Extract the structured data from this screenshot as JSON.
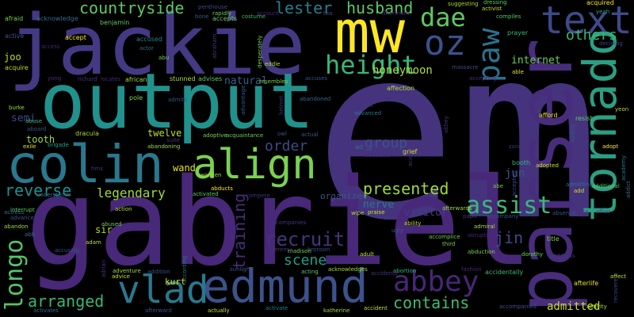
{
  "words": [
    {
      "text": "em",
      "color": "#46337e"
    },
    {
      "text": "gabriel",
      "color": "#482878"
    },
    {
      "text": "jackie",
      "color": "#443983"
    },
    {
      "text": "output",
      "color": "#21918c"
    },
    {
      "text": "parser",
      "color": "#472d7b"
    },
    {
      "text": "mw",
      "color": "#fde725"
    },
    {
      "text": "colin",
      "color": "#2a788e"
    },
    {
      "text": "edmund",
      "color": "#3b528b"
    },
    {
      "text": "tornado",
      "color": "#2c9f83"
    },
    {
      "text": "text",
      "color": "#3e4989"
    },
    {
      "text": "align",
      "color": "#7ad151"
    },
    {
      "text": "vlad",
      "color": "#2a788e"
    },
    {
      "text": "abbey",
      "color": "#482677"
    },
    {
      "text": "oz",
      "color": "#3b528b"
    },
    {
      "text": "paw",
      "color": "#2c728e"
    },
    {
      "text": "height",
      "color": "#35b779"
    },
    {
      "text": "dae",
      "color": "#5ec962"
    },
    {
      "text": "countryside",
      "color": "#5ec962"
    },
    {
      "text": "longo",
      "color": "#54c568"
    },
    {
      "text": "assist",
      "color": "#3aba76"
    },
    {
      "text": "recruit",
      "color": "#46337e"
    },
    {
      "text": "reverse",
      "color": "#218f8d"
    },
    {
      "text": "arranged",
      "color": "#35b779"
    },
    {
      "text": "contains",
      "color": "#3dbc74"
    },
    {
      "text": "presented",
      "color": "#a0da39"
    },
    {
      "text": "husband",
      "color": "#5ec962"
    },
    {
      "text": "lester",
      "color": "#277f8e"
    },
    {
      "text": "others",
      "color": "#37b878"
    },
    {
      "text": "training",
      "color": "#472d7b"
    },
    {
      "text": "order",
      "color": "#3e4989"
    },
    {
      "text": "group",
      "color": "#3b528b"
    },
    {
      "text": "jin",
      "color": "#3e4989"
    },
    {
      "text": "scene",
      "color": "#1f9e89"
    },
    {
      "text": "admitted",
      "color": "#c8e020"
    },
    {
      "text": "legendary",
      "color": "#a0da39"
    },
    {
      "text": "honeymoon",
      "color": "#addc30"
    },
    {
      "text": "jun",
      "color": "#38588c"
    },
    {
      "text": "internet",
      "color": "#6ece58"
    },
    {
      "text": "natural",
      "color": "#34618d"
    },
    {
      "text": "visitor",
      "color": "#433e85"
    },
    {
      "text": "nerve",
      "color": "#2a788e"
    },
    {
      "text": "twelve",
      "color": "#c2df23"
    },
    {
      "text": "tooth",
      "color": "#9fda3a"
    },
    {
      "text": "semi",
      "color": "#3e4989"
    },
    {
      "text": "joo",
      "color": "#b5de2b"
    },
    {
      "text": "wand",
      "color": "#e5e419"
    },
    {
      "text": "sir",
      "color": "#addc30"
    },
    {
      "text": "kurt",
      "color": "#d8e219"
    },
    {
      "text": "organizes",
      "color": "#38588c"
    },
    {
      "text": "willie",
      "color": "#46337e"
    },
    {
      "text": "afraid",
      "color": "#7ad151"
    },
    {
      "text": "acknowledge",
      "color": "#2c728e"
    },
    {
      "text": "benjamin",
      "color": "#5ec962"
    },
    {
      "text": "active",
      "color": "#3b528b"
    },
    {
      "text": "accept",
      "color": "#fde725"
    },
    {
      "text": "access",
      "color": "#482878"
    },
    {
      "text": "acquire",
      "color": "#c2df23"
    },
    {
      "text": "accused",
      "color": "#26828e"
    },
    {
      "text": "actor",
      "color": "#30697e"
    },
    {
      "text": "abu",
      "color": "#7ad151"
    },
    {
      "text": "penthouse",
      "color": "#3e4989"
    },
    {
      "text": "bone",
      "color": "#38588c"
    },
    {
      "text": "rapidly",
      "color": "#6ece58"
    },
    {
      "text": "accepts",
      "color": "#6ece58"
    },
    {
      "text": "costume",
      "color": "#35b779"
    },
    {
      "text": "account",
      "color": "#482878"
    },
    {
      "text": "tea",
      "color": "#3b528b"
    },
    {
      "text": "aftermath",
      "color": "#472d7b"
    },
    {
      "text": "suggesting",
      "color": "#a0da39"
    },
    {
      "text": "dressing",
      "color": "#5ec962"
    },
    {
      "text": "activist",
      "color": "#bddf26"
    },
    {
      "text": "compiles",
      "color": "#5ec962"
    },
    {
      "text": "acquired",
      "color": "#fde725"
    },
    {
      "text": "yeah",
      "color": "#22a884"
    },
    {
      "text": "deciding",
      "color": "#433e85"
    },
    {
      "text": "prayer",
      "color": "#35b779"
    },
    {
      "text": "abraham",
      "color": "#46337e"
    },
    {
      "text": "desperately",
      "color": "#7ad151"
    },
    {
      "text": "eddie",
      "color": "#addc30"
    },
    {
      "text": "able",
      "color": "#e5e419"
    },
    {
      "text": "massacre",
      "color": "#3e4989"
    },
    {
      "text": "accepting",
      "color": "#472d7b"
    },
    {
      "text": "affection",
      "color": "#addc30"
    },
    {
      "text": "accuses",
      "color": "#3b528b"
    },
    {
      "text": "abandoned",
      "color": "#31688e"
    },
    {
      "text": "resembles",
      "color": "#7ad151"
    },
    {
      "text": "stunned",
      "color": "#addc30"
    },
    {
      "text": "advises",
      "color": "#5ec962"
    },
    {
      "text": "locates",
      "color": "#482878"
    },
    {
      "text": "african",
      "color": "#a0da39"
    },
    {
      "text": "richard",
      "color": "#46337e"
    },
    {
      "text": "pole",
      "color": "#7ad151"
    },
    {
      "text": "admits",
      "color": "#3b528b"
    },
    {
      "text": "advantage",
      "color": "#38588c"
    },
    {
      "text": "abigail",
      "color": "#46337e"
    },
    {
      "text": "advanced",
      "color": "#2a788e"
    },
    {
      "text": "helmet",
      "color": "#472d7b"
    },
    {
      "text": "burke",
      "color": "#a0da39"
    },
    {
      "text": "abuse",
      "color": "#37b878"
    },
    {
      "text": "aboard",
      "color": "#3b528b"
    },
    {
      "text": "exile",
      "color": "#e5e419"
    },
    {
      "text": "brigade",
      "color": "#1fa088"
    },
    {
      "text": "dracula",
      "color": "#addc30"
    },
    {
      "text": "abandoning",
      "color": "#a0da39"
    },
    {
      "text": "adoptive",
      "color": "#7ad151"
    },
    {
      "text": "acquaintance",
      "color": "#6ece58"
    },
    {
      "text": "owl",
      "color": "#3b528b"
    },
    {
      "text": "actual",
      "color": "#38588c"
    },
    {
      "text": "ad",
      "color": "#2c728e"
    },
    {
      "text": "abducted",
      "color": "#472d7b"
    },
    {
      "text": "grief",
      "color": "#c8e020"
    },
    {
      "text": "acid",
      "color": "#46337e"
    },
    {
      "text": "achieve",
      "color": "#46337e"
    },
    {
      "text": "afford",
      "color": "#d8e219"
    },
    {
      "text": "resist",
      "color": "#5ec962"
    },
    {
      "text": "adding",
      "color": "#3b528b"
    },
    {
      "text": "yeon",
      "color": "#b5de2b"
    },
    {
      "text": "academy",
      "color": "#2a788e"
    },
    {
      "text": "adopt",
      "color": "#fde725"
    },
    {
      "text": "adopted",
      "color": "#c8e020"
    },
    {
      "text": "booth",
      "color": "#35b779"
    },
    {
      "text": "admitting",
      "color": "#2c728e"
    },
    {
      "text": "additional",
      "color": "#5ec962"
    },
    {
      "text": "addict",
      "color": "#2c728e"
    },
    {
      "text": "affair",
      "color": "#3e4989"
    },
    {
      "text": "absence",
      "color": "#3b528b"
    },
    {
      "text": "elsa",
      "color": "#46337e"
    },
    {
      "text": "add",
      "color": "#c8e020"
    },
    {
      "text": "abe",
      "color": "#6ece58"
    },
    {
      "text": "accepted",
      "color": "#3e4989"
    },
    {
      "text": "zang",
      "color": "#46337e"
    },
    {
      "text": "accompany",
      "color": "#3b528b"
    },
    {
      "text": "papa",
      "color": "#46337e"
    },
    {
      "text": "afterwards",
      "color": "#a0da39"
    },
    {
      "text": "admiral",
      "color": "#addc30"
    },
    {
      "text": "abruptly",
      "color": "#482878"
    },
    {
      "text": "abduction",
      "color": "#7ad151"
    },
    {
      "text": "third",
      "color": "#7ad151"
    },
    {
      "text": "accomplice",
      "color": "#6ece58"
    },
    {
      "text": "ability",
      "color": "#c2df23"
    },
    {
      "text": "praise",
      "color": "#c8e020"
    },
    {
      "text": "wipe",
      "color": "#addc30"
    },
    {
      "text": "ugly",
      "color": "#38588c"
    },
    {
      "text": "adult",
      "color": "#c2df23"
    },
    {
      "text": "abortion",
      "color": "#35b779"
    },
    {
      "text": "fashion",
      "color": "#482878"
    },
    {
      "text": "accidentally",
      "color": "#37b878"
    },
    {
      "text": "title",
      "color": "#7ad151"
    },
    {
      "text": "dorothy",
      "color": "#6ece58"
    },
    {
      "text": "address",
      "color": "#46337e"
    },
    {
      "text": "afterlife",
      "color": "#e5e419"
    },
    {
      "text": "affect",
      "color": "#c8e020"
    },
    {
      "text": "activity",
      "color": "#a0da39"
    },
    {
      "text": "accompanied",
      "color": "#3b528b"
    },
    {
      "text": "recovered",
      "color": "#3e4989"
    },
    {
      "text": "accidents",
      "color": "#46337e"
    },
    {
      "text": "accident",
      "color": "#c2df23"
    },
    {
      "text": "katherine",
      "color": "#a0da39"
    },
    {
      "text": "actually",
      "color": "#c8e020"
    },
    {
      "text": "activate",
      "color": "#2a788e"
    },
    {
      "text": "acknowledges",
      "color": "#a0da39"
    },
    {
      "text": "acting",
      "color": "#5ec962"
    },
    {
      "text": "bronson",
      "color": "#3b528b"
    },
    {
      "text": "madison",
      "color": "#7ad151"
    },
    {
      "text": "jeremy",
      "color": "#46337e"
    },
    {
      "text": "accompanies",
      "color": "#46337e"
    },
    {
      "text": "compete",
      "color": "#472d7b"
    },
    {
      "text": "abducts",
      "color": "#fde725"
    },
    {
      "text": "activated",
      "color": "#5ec962"
    },
    {
      "text": "suite",
      "color": "#46337e"
    },
    {
      "text": "wooden",
      "color": "#a0da39"
    },
    {
      "text": "adventure",
      "color": "#a0da39"
    },
    {
      "text": "action",
      "color": "#addc30"
    },
    {
      "text": "advice",
      "color": "#c8e020"
    },
    {
      "text": "addition",
      "color": "#3b528b"
    },
    {
      "text": "according",
      "color": "#2c728e"
    },
    {
      "text": "afterward",
      "color": "#3b528b"
    },
    {
      "text": "sunlight",
      "color": "#3b528b"
    },
    {
      "text": "abused",
      "color": "#6ece58"
    },
    {
      "text": "adam",
      "color": "#c2df23"
    },
    {
      "text": "accusing",
      "color": "#3b528b"
    },
    {
      "text": "adrian",
      "color": "#46337e"
    },
    {
      "text": "activates",
      "color": "#2c728e"
    },
    {
      "text": "interrupt",
      "color": "#5ec962"
    },
    {
      "text": "actress",
      "color": "#2c728e"
    },
    {
      "text": "advance",
      "color": "#3b528b"
    },
    {
      "text": "abandon",
      "color": "#a0da39"
    },
    {
      "text": "abb",
      "color": "#2c728e"
    },
    {
      "text": "understands",
      "color": "#2c728e"
    },
    {
      "text": "hms",
      "color": "#46337e"
    },
    {
      "text": "abbey",
      "color": "#472d7b"
    },
    {
      "text": "yong",
      "color": "#472d7b"
    }
  ]
}
